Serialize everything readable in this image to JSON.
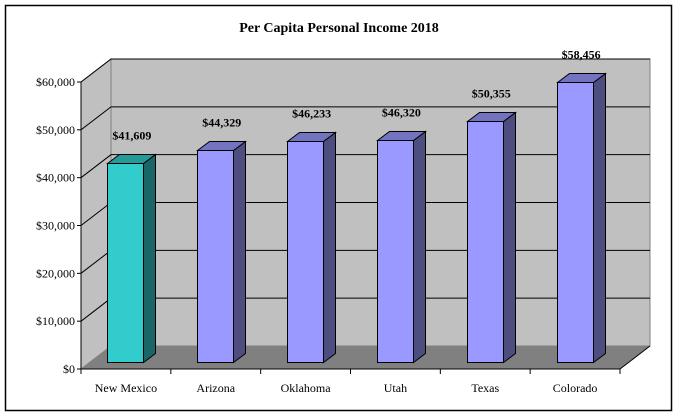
{
  "chart_data": {
    "type": "bar",
    "title": "Per Capita Personal Income 2018",
    "xlabel": "",
    "ylabel": "",
    "categories": [
      "New Mexico",
      "Arizona",
      "Oklahoma",
      "Utah",
      "Texas",
      "Colorado"
    ],
    "values": [
      41609,
      44329,
      46233,
      46320,
      50355,
      58456
    ],
    "data_labels": [
      "$41,609",
      "$44,329",
      "$46,233",
      "$46,320",
      "$50,355",
      "$58,456"
    ],
    "ylim": [
      0,
      60000
    ],
    "yticks": [
      0,
      10000,
      20000,
      30000,
      40000,
      50000,
      60000
    ],
    "ytick_labels": [
      "$0",
      "$10,000",
      "$20,000",
      "$30,000",
      "$40,000",
      "$50,000",
      "$60,000"
    ],
    "grid": true,
    "legend": "none",
    "style": "3d-column",
    "colors": {
      "highlight_front": "#33CCCC",
      "highlight_side": "#1A6666",
      "highlight_top": "#269999",
      "default_front": "#9999FF",
      "default_side": "#4D4D80",
      "default_top": "#7373BF",
      "wall": "#C0C0C0",
      "floor": "#808080"
    },
    "highlighted_category": "New Mexico"
  }
}
